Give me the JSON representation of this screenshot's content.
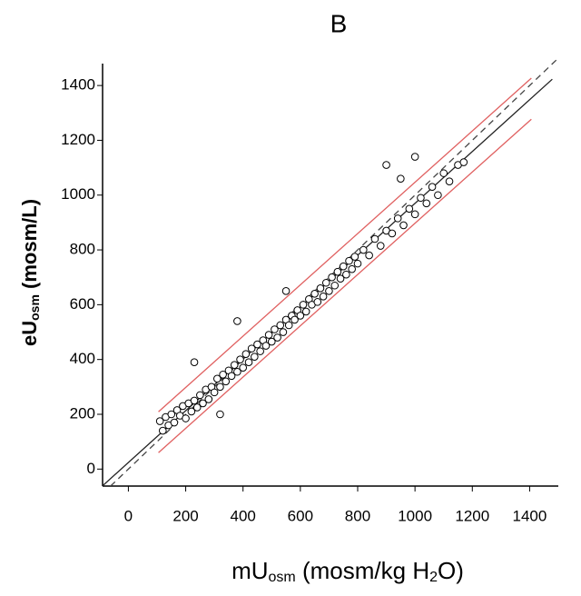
{
  "chart_data": {
    "type": "scatter",
    "title": "B",
    "x_label": [
      "mU",
      "osm",
      " (mosm/kg H",
      "2",
      "O)"
    ],
    "y_label": [
      "eU",
      "osm",
      " (mosm/L)"
    ],
    "x": [
      110,
      120,
      130,
      140,
      150,
      160,
      170,
      180,
      190,
      200,
      210,
      220,
      230,
      240,
      250,
      260,
      270,
      280,
      290,
      300,
      310,
      320,
      330,
      340,
      350,
      360,
      370,
      380,
      390,
      400,
      410,
      420,
      430,
      440,
      450,
      460,
      470,
      480,
      490,
      500,
      510,
      520,
      530,
      540,
      550,
      560,
      570,
      580,
      590,
      600,
      610,
      620,
      630,
      640,
      650,
      660,
      670,
      680,
      690,
      700,
      710,
      720,
      730,
      740,
      750,
      760,
      770,
      780,
      790,
      800,
      820,
      840,
      860,
      880,
      900,
      920,
      940,
      960,
      980,
      1000,
      1020,
      1040,
      1060,
      1080,
      1100,
      1120,
      1150,
      1170,
      320,
      380,
      550,
      900,
      1000,
      950,
      230
    ],
    "y": [
      175,
      140,
      190,
      160,
      200,
      170,
      215,
      195,
      230,
      185,
      240,
      210,
      250,
      225,
      270,
      240,
      290,
      255,
      300,
      280,
      330,
      300,
      345,
      320,
      360,
      340,
      380,
      355,
      400,
      370,
      420,
      390,
      440,
      410,
      455,
      430,
      470,
      450,
      490,
      465,
      510,
      480,
      525,
      500,
      545,
      525,
      560,
      545,
      580,
      560,
      600,
      575,
      620,
      600,
      640,
      610,
      660,
      630,
      680,
      650,
      700,
      670,
      720,
      695,
      740,
      710,
      760,
      730,
      775,
      750,
      800,
      780,
      840,
      815,
      870,
      860,
      915,
      890,
      950,
      930,
      990,
      970,
      1030,
      1000,
      1080,
      1050,
      1110,
      1120,
      200,
      540,
      650,
      1110,
      1140,
      1060,
      390
    ],
    "color": "#000000",
    "lines": [
      {
        "x": [
          -90,
          1500
        ],
        "y": [
          -90,
          1500
        ],
        "color": "#444444",
        "dash": true
      },
      {
        "x": [
          -92,
          1479
        ],
        "y": [
          -63,
          1423
        ],
        "color": "#222222",
        "dash": false
      },
      {
        "x": [
          105,
          1406
        ],
        "y": [
          209,
          1427
        ],
        "color": "#e06060",
        "dash": false
      },
      {
        "x": [
          105,
          1406
        ],
        "y": [
          60,
          1277
        ],
        "color": "#e06060",
        "dash": false
      }
    ],
    "xlim": [
      -90,
      1500
    ],
    "ylim": [
      -62,
      1480
    ],
    "xticks": [
      0,
      200,
      400,
      600,
      800,
      1000,
      1200,
      1400
    ],
    "yticks": [
      0,
      200,
      400,
      600,
      800,
      1000,
      1200,
      1400
    ]
  }
}
